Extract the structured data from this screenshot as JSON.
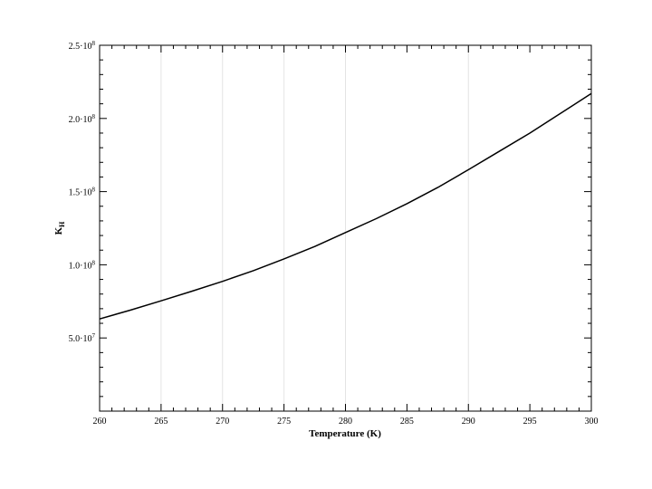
{
  "chart_data": {
    "type": "line",
    "title": "",
    "xlabel": "Temperature (K)",
    "ylabel_main": "K",
    "ylabel_sub": "H",
    "xlim": [
      260,
      300
    ],
    "ylim": [
      0,
      250000000
    ],
    "x_ticks": [
      {
        "value": 260,
        "label": "260"
      },
      {
        "value": 265,
        "label": "265"
      },
      {
        "value": 270,
        "label": "270"
      },
      {
        "value": 275,
        "label": "275"
      },
      {
        "value": 280,
        "label": "280"
      },
      {
        "value": 285,
        "label": "285"
      },
      {
        "value": 290,
        "label": "290"
      },
      {
        "value": 295,
        "label": "295"
      },
      {
        "value": 300,
        "label": "300"
      }
    ],
    "y_ticks": [
      {
        "value": 50000000,
        "mant": "5.0",
        "exp": "7"
      },
      {
        "value": 100000000,
        "mant": "1.0",
        "exp": "8"
      },
      {
        "value": 150000000,
        "mant": "1.5",
        "exp": "8"
      },
      {
        "value": 200000000,
        "mant": "2.0",
        "exp": "8"
      },
      {
        "value": 250000000,
        "mant": "2.5",
        "exp": "8"
      }
    ],
    "x_grid": [
      265,
      270,
      275,
      280,
      290
    ],
    "grid_color": "#e4e4e4",
    "line_color": "#000000",
    "series": [
      {
        "x": [
          260,
          262.5,
          265,
          267.5,
          270,
          272.5,
          275,
          277.5,
          280,
          282.5,
          285,
          287.5,
          290,
          292.5,
          295,
          297.5,
          300
        ],
        "y": [
          63000000,
          69000000,
          75400000,
          81900000,
          88700000,
          96000000,
          104000000,
          112500000,
          122000000,
          131500000,
          141800000,
          152800000,
          165000000,
          177500000,
          190000000,
          203500000,
          217000000
        ]
      }
    ]
  }
}
